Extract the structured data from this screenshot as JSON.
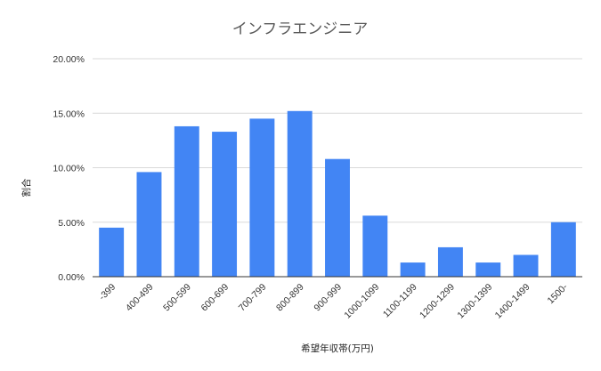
{
  "colors": {
    "bar": "#4285f4",
    "grid": "#d9d9d9"
  },
  "chart_data": {
    "type": "bar",
    "title": "インフラエンジニア",
    "xlabel": "希望年収帯(万円)",
    "ylabel": "割合",
    "ylim": [
      0,
      0.2
    ],
    "yticks": [
      0,
      0.05,
      0.1,
      0.15,
      0.2
    ],
    "ytick_labels": [
      "0.00%",
      "5.00%",
      "10.00%",
      "15.00%",
      "20.00%"
    ],
    "grid": true,
    "categories": [
      "-399",
      "400-499",
      "500-599",
      "600-699",
      "700-799",
      "800-899",
      "900-999",
      "1000-1099",
      "1100-1199",
      "1200-1299",
      "1300-1399",
      "1400-1499",
      "1500-"
    ],
    "values": [
      0.045,
      0.096,
      0.138,
      0.133,
      0.145,
      0.152,
      0.108,
      0.056,
      0.013,
      0.027,
      0.013,
      0.02,
      0.05
    ]
  }
}
